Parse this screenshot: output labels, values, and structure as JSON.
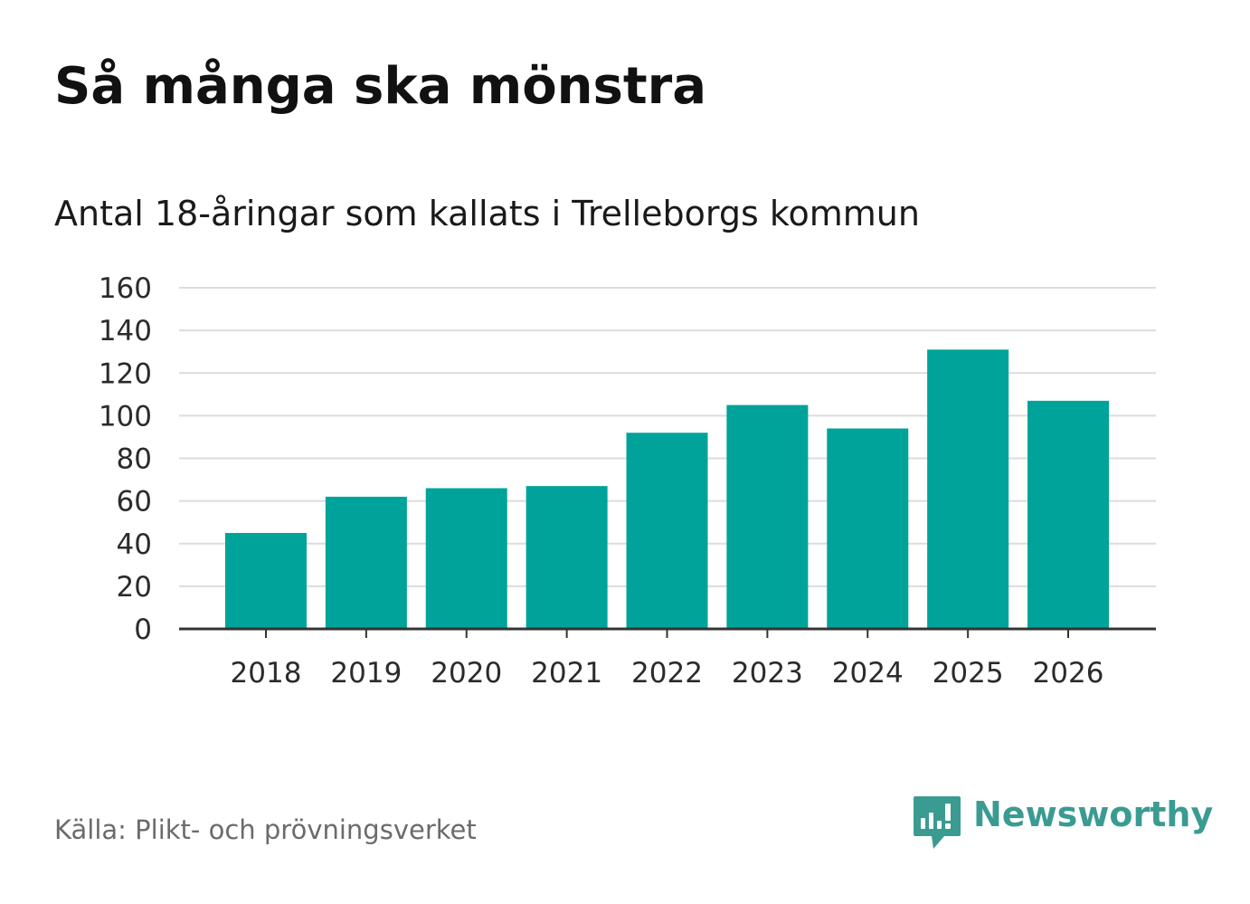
{
  "title": "Så många ska mönstra",
  "subtitle": "Antal 18-åringar som kallats i Trelleborgs kommun",
  "source": "Källa: Plikt- och prövningsverket",
  "logo": {
    "text": "Newsworthy",
    "icon": "newsworthy-logo-icon"
  },
  "colors": {
    "bar": "#00a39a",
    "grid": "#dcdcdc",
    "axis": "#333333",
    "logo": "#3a9b92",
    "source": "#6b6b6b"
  },
  "chart_data": {
    "type": "bar",
    "title": "Så många ska mönstra",
    "subtitle": "Antal 18-åringar som kallats i Trelleborgs kommun",
    "categories": [
      "2018",
      "2019",
      "2020",
      "2021",
      "2022",
      "2023",
      "2024",
      "2025",
      "2026"
    ],
    "values": [
      45,
      62,
      66,
      67,
      92,
      105,
      94,
      131,
      107
    ],
    "ylim": [
      0,
      160
    ],
    "yticks": [
      0,
      20,
      40,
      60,
      80,
      100,
      120,
      140,
      160
    ],
    "xlabel": "",
    "ylabel": "",
    "grid": true,
    "legend": "none"
  }
}
